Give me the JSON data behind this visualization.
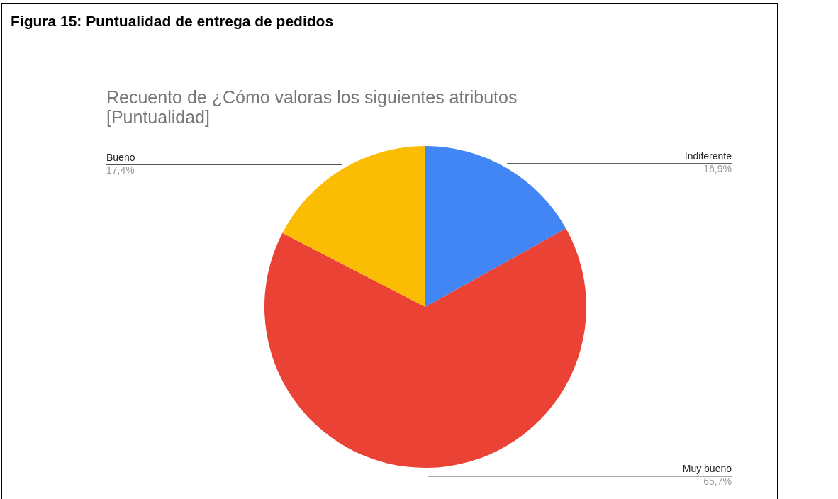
{
  "chart_data": {
    "type": "pie",
    "title": "Figura 15: Puntualidad de entrega de pedidos",
    "subtitle": "Recuento de ¿Cómo valoras los siguientes atributos\n[Puntualidad]",
    "categories": [
      "Indiferente",
      "Muy bueno",
      "Bueno"
    ],
    "values": [
      16.9,
      65.7,
      17.4
    ],
    "colors": [
      "#4285f4",
      "#ea4335",
      "#fbbc04"
    ],
    "value_labels": [
      "16,9%",
      "65,7%",
      "17,4%"
    ]
  }
}
